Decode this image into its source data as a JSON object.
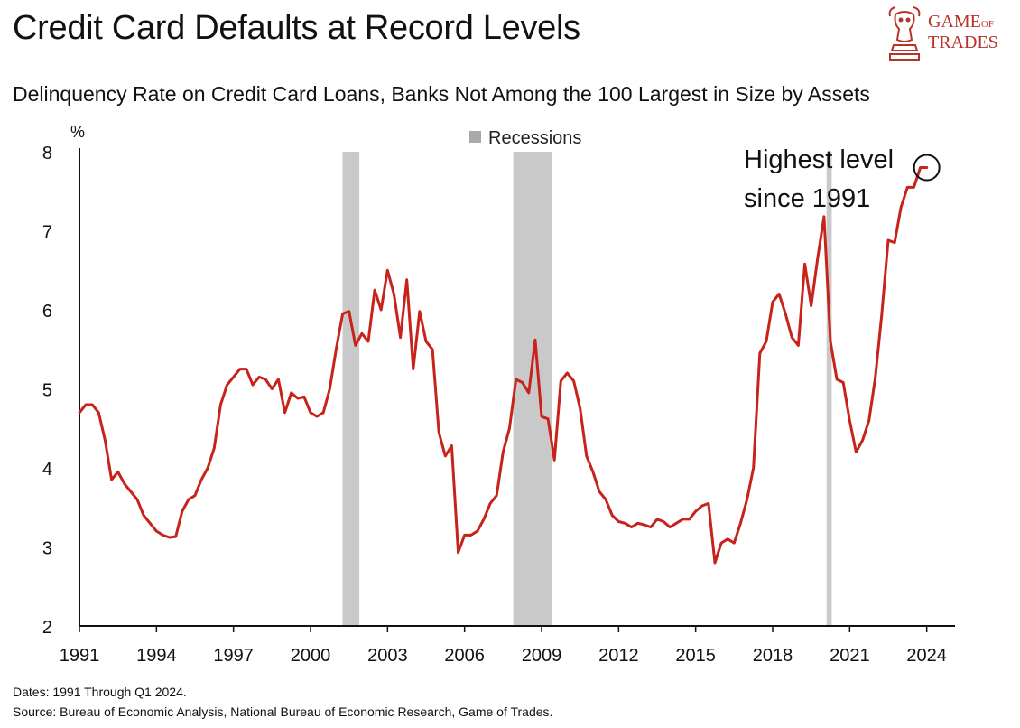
{
  "header": {
    "title": "Credit Card Defaults at Record Levels",
    "subtitle": "Delinquency Rate on Credit Card Loans, Banks Not Among the 100 Largest in Size by Assets"
  },
  "logo": {
    "line1": "GAME",
    "line1_small": "OF",
    "line2": "TRADES"
  },
  "footer": {
    "dates": "Dates: 1991 Through Q1 2024.",
    "source": "Source: Bureau of Economic Analysis, National Bureau of Economic Research, Game of Trades."
  },
  "colors": {
    "line": "#c8231b",
    "recession": "#c9c9c9",
    "axis": "#111111",
    "brand": "#b8322a"
  },
  "chart_data": {
    "type": "line",
    "title": "Delinquency Rate on Credit Card Loans, Banks Not Among the 100 Largest in Size by Assets",
    "ylabel": "%",
    "xlabel": "",
    "xlim": [
      1991.0,
      2024.75
    ],
    "ylim": [
      2,
      8
    ],
    "yticks": [
      2,
      3,
      4,
      5,
      6,
      7,
      8
    ],
    "xticks": [
      1991,
      1994,
      1997,
      2000,
      2003,
      2006,
      2009,
      2012,
      2015,
      2018,
      2021,
      2024
    ],
    "legend": {
      "label": "Recessions",
      "position": "top-center"
    },
    "recessions": [
      [
        2001.25,
        2001.9
      ],
      [
        2007.9,
        2009.4
      ],
      [
        2020.1,
        2020.3
      ]
    ],
    "annotation": {
      "text_line1": "Highest level",
      "text_line2": "since 1991",
      "x": 2024.0,
      "y": 7.8
    },
    "series": [
      {
        "name": "Delinquency Rate",
        "x": [
          1991.0,
          1991.25,
          1991.5,
          1991.75,
          1992.0,
          1992.25,
          1992.5,
          1992.75,
          1993.0,
          1993.25,
          1993.5,
          1993.75,
          1994.0,
          1994.25,
          1994.5,
          1994.75,
          1995.0,
          1995.25,
          1995.5,
          1995.75,
          1996.0,
          1996.25,
          1996.5,
          1996.75,
          1997.0,
          1997.25,
          1997.5,
          1997.75,
          1998.0,
          1998.25,
          1998.5,
          1998.75,
          1999.0,
          1999.25,
          1999.5,
          1999.75,
          2000.0,
          2000.25,
          2000.5,
          2000.75,
          2001.0,
          2001.25,
          2001.5,
          2001.75,
          2002.0,
          2002.25,
          2002.5,
          2002.75,
          2003.0,
          2003.25,
          2003.5,
          2003.75,
          2004.0,
          2004.25,
          2004.5,
          2004.75,
          2005.0,
          2005.25,
          2005.5,
          2005.75,
          2006.0,
          2006.25,
          2006.5,
          2006.75,
          2007.0,
          2007.25,
          2007.5,
          2007.75,
          2008.0,
          2008.25,
          2008.5,
          2008.75,
          2009.0,
          2009.25,
          2009.5,
          2009.75,
          2010.0,
          2010.25,
          2010.5,
          2010.75,
          2011.0,
          2011.25,
          2011.5,
          2011.75,
          2012.0,
          2012.25,
          2012.5,
          2012.75,
          2013.0,
          2013.25,
          2013.5,
          2013.75,
          2014.0,
          2014.25,
          2014.5,
          2014.75,
          2015.0,
          2015.25,
          2015.5,
          2015.75,
          2016.0,
          2016.25,
          2016.5,
          2016.75,
          2017.0,
          2017.25,
          2017.5,
          2017.75,
          2018.0,
          2018.25,
          2018.5,
          2018.75,
          2019.0,
          2019.25,
          2019.5,
          2019.75,
          2020.0,
          2020.25,
          2020.5,
          2020.75,
          2021.0,
          2021.25,
          2021.5,
          2021.75,
          2022.0,
          2022.25,
          2022.5,
          2022.75,
          2023.0,
          2023.25,
          2023.5,
          2023.75,
          2024.0
        ],
        "values": [
          4.7,
          4.8,
          4.8,
          4.7,
          4.35,
          3.85,
          3.95,
          3.8,
          3.7,
          3.6,
          3.4,
          3.3,
          3.2,
          3.15,
          3.12,
          3.13,
          3.45,
          3.6,
          3.65,
          3.85,
          4.0,
          4.25,
          4.8,
          5.05,
          5.15,
          5.25,
          5.25,
          5.05,
          5.15,
          5.12,
          5.0,
          5.12,
          4.7,
          4.95,
          4.88,
          4.9,
          4.7,
          4.65,
          4.7,
          5.0,
          5.5,
          5.95,
          5.98,
          5.55,
          5.7,
          5.6,
          6.25,
          6.0,
          6.5,
          6.2,
          5.65,
          6.38,
          5.25,
          5.98,
          5.6,
          5.5,
          4.45,
          4.15,
          4.28,
          2.93,
          3.15,
          3.15,
          3.2,
          3.35,
          3.55,
          3.65,
          4.2,
          4.5,
          5.12,
          5.08,
          4.95,
          5.62,
          4.65,
          4.62,
          4.1,
          5.1,
          5.2,
          5.1,
          4.75,
          4.15,
          3.95,
          3.7,
          3.6,
          3.4,
          3.32,
          3.3,
          3.25,
          3.3,
          3.28,
          3.25,
          3.35,
          3.32,
          3.25,
          3.3,
          3.35,
          3.35,
          3.45,
          3.52,
          3.55,
          2.8,
          3.05,
          3.1,
          3.05,
          3.3,
          3.6,
          4.0,
          5.45,
          5.6,
          6.1,
          6.2,
          5.95,
          5.65,
          5.55,
          6.58,
          6.05,
          6.65,
          7.18,
          5.6,
          5.12,
          5.08,
          4.6,
          4.2,
          4.35,
          4.6,
          5.15,
          5.95,
          6.88,
          6.85,
          7.3,
          7.55,
          7.55,
          7.8,
          7.8
        ]
      }
    ]
  }
}
